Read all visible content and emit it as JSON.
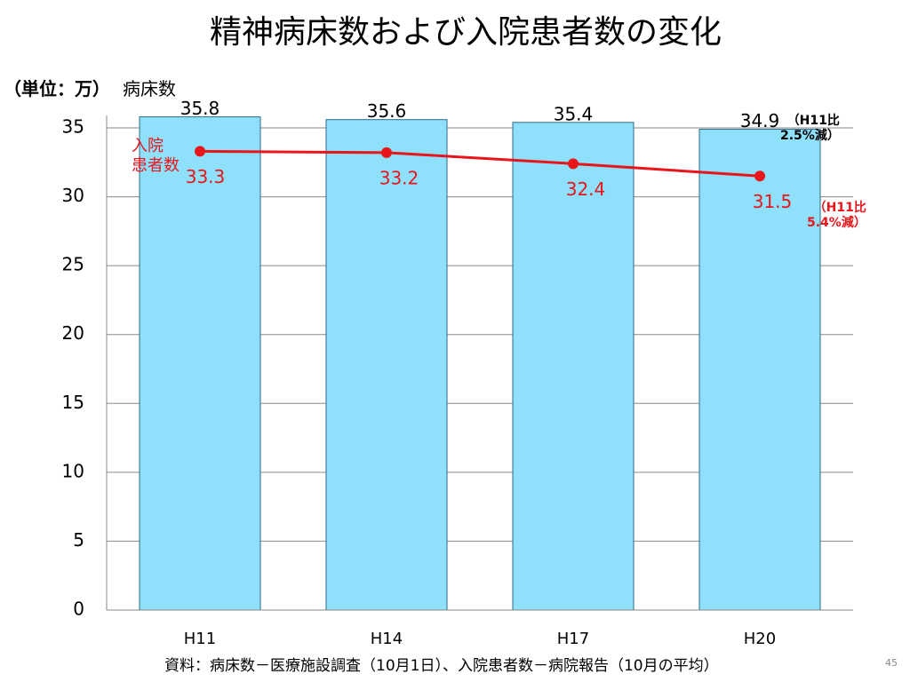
{
  "chart_data": {
    "type": "combo",
    "title": "精神病床数および入院患者数の変化",
    "unit_label": "（単位：万）",
    "categories": [
      "H11",
      "H14",
      "H17",
      "H20"
    ],
    "series": [
      {
        "name": "病床数",
        "type": "bar",
        "color": "#8ee0fb",
        "values": [
          35.8,
          35.6,
          35.4,
          34.9
        ]
      },
      {
        "name": "入院\n患者数",
        "type": "line",
        "color": "#e8151b",
        "values": [
          33.3,
          33.2,
          32.4,
          31.5
        ]
      }
    ],
    "ylim": [
      0,
      35
    ],
    "yticks": [
      0,
      5,
      10,
      15,
      20,
      25,
      30,
      35
    ],
    "grid": true,
    "annotations": [
      "（H11比\n2.5%減）",
      "（H11比\n5.4%減）"
    ],
    "source": "資料：病床数－医療施設調査（10月1日）、入院患者数－病院報告（10月の平均）",
    "page_number": "45"
  }
}
